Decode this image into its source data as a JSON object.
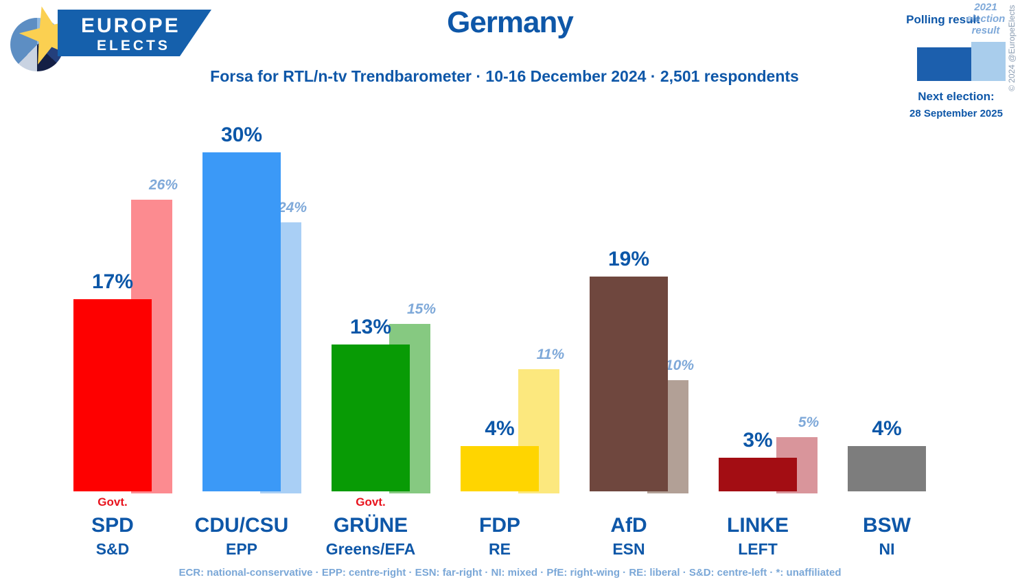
{
  "header": {
    "logo": {
      "line1": "EUROPE",
      "line2": "ELECTS"
    },
    "title": "Germany",
    "subtitle": "Forsa for RTL/n-tv Trendbarometer · 10-16 December 2024 · 2,501 respondents",
    "legend": {
      "polling_label": "Polling result",
      "election_2021_label": "2021 election result"
    },
    "copyright": "© 2024 @EuropeElects",
    "next_election_label": "Next election:",
    "next_election_date": "28 September 2025"
  },
  "chart_data": {
    "type": "bar",
    "title": "Germany",
    "subtitle": "Forsa for RTL/n-tv Trendbarometer · 10-16 December 2024 · 2,501 respondents",
    "categories": [
      "SPD",
      "CDU/CSU",
      "GRÜNE",
      "FDP",
      "AfD",
      "LINKE",
      "BSW"
    ],
    "group_labels": [
      "S&D",
      "EPP",
      "Greens/EFA",
      "RE",
      "ESN",
      "LEFT",
      "NI"
    ],
    "series": [
      {
        "name": "Polling result",
        "values": [
          17,
          30,
          13,
          4,
          19,
          3,
          4
        ]
      },
      {
        "name": "2021 election result",
        "values": [
          26,
          24,
          15,
          11,
          10,
          5,
          null
        ]
      }
    ],
    "value_suffix": "%",
    "in_government": [
      true,
      false,
      true,
      false,
      false,
      false,
      false
    ],
    "govt_label": "Govt.",
    "party_colors": [
      "#fe0000",
      "#3b99f7",
      "#089b05",
      "#ffd500",
      "#6f473e",
      "#a30d13",
      "#7d7d7d"
    ],
    "election_2021_colors": [
      "#fc8b90",
      "#a9cff5",
      "#86c981",
      "#fce87e",
      "#b2a096",
      "#d9959b",
      null
    ],
    "ylim": [
      0,
      32
    ],
    "grid": false,
    "legend_position": "top-right"
  },
  "footer": {
    "legend_text": "ECR: national-conservative · EPP: centre-right · ESN: far-right · NI: mixed · PfE: right-wing · RE: liberal · S&D: centre-left · *: unaffiliated"
  },
  "colors": {
    "accent_dark_blue": "#0e57a8",
    "accent_light_blue": "#7fa9d9",
    "govt_red": "#e8141e",
    "banner_blue": "#1560ac",
    "star_yellow": "#fbd051"
  }
}
